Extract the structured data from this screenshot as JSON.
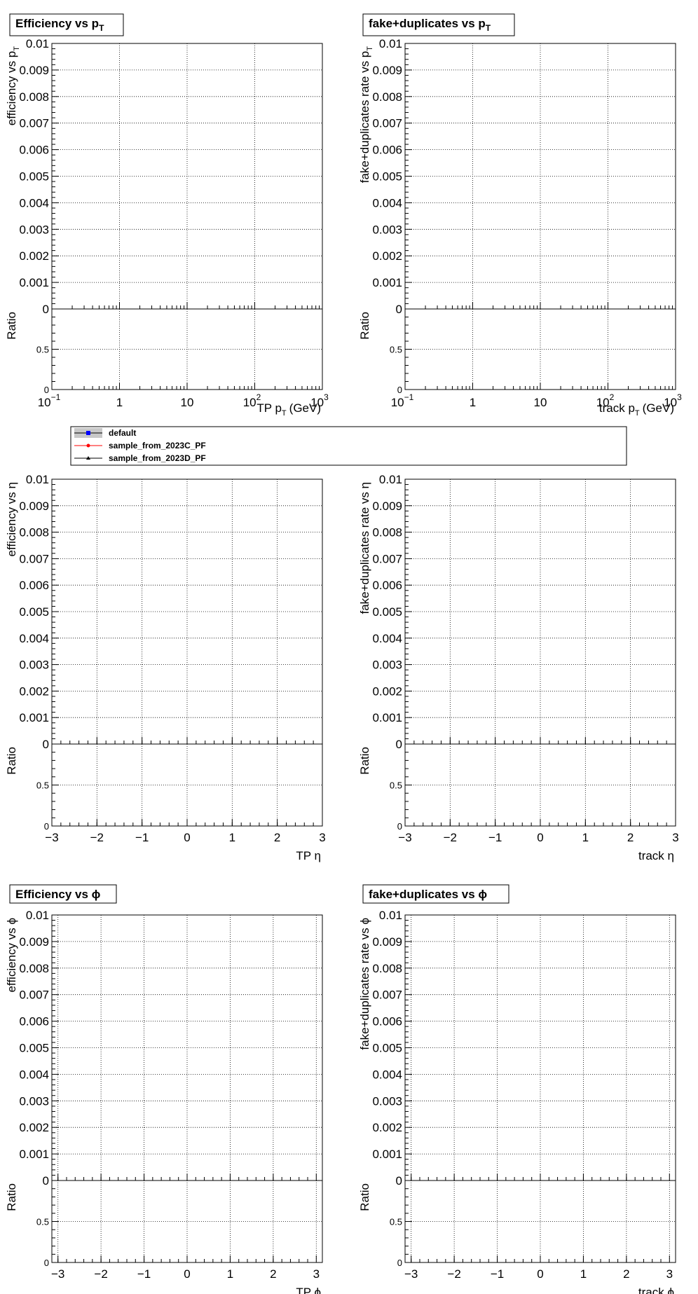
{
  "chart_data": [
    {
      "id": "eff_pt",
      "type": "line",
      "title": "Efficiency vs p",
      "title_sub": "T",
      "ylabel": "efficiency vs p",
      "ylabel_sub": "T",
      "xlabel": "TP p",
      "xlabel_sub": "T",
      "xlabel_unit": "(GeV)",
      "ratio_label": "Ratio",
      "x_scale": "log",
      "xlim": [
        0.1,
        1000
      ],
      "ylim": [
        0,
        0.01
      ],
      "ratio_ylim": [
        0,
        1.0
      ],
      "grid": true,
      "y_ticks": [
        "0",
        "0.001",
        "0.002",
        "0.003",
        "0.004",
        "0.005",
        "0.006",
        "0.007",
        "0.008",
        "0.009",
        "0.01"
      ],
      "ratio_ticks": [
        "0",
        "0.5"
      ],
      "series": []
    },
    {
      "id": "fake_pt",
      "type": "line",
      "title": "fake+duplicates vs p",
      "title_sub": "T",
      "ylabel": "fake+duplicates rate vs p",
      "ylabel_sub": "T",
      "xlabel": "track p",
      "xlabel_sub": "T",
      "xlabel_unit": "(GeV)",
      "ratio_label": "Ratio",
      "x_scale": "log",
      "xlim": [
        0.1,
        1000
      ],
      "ylim": [
        0,
        0.01
      ],
      "ratio_ylim": [
        0,
        1.0
      ],
      "grid": true,
      "y_ticks": [
        "0",
        "0.001",
        "0.002",
        "0.003",
        "0.004",
        "0.005",
        "0.006",
        "0.007",
        "0.008",
        "0.009",
        "0.01"
      ],
      "ratio_ticks": [
        "0",
        "0.5"
      ],
      "series": []
    },
    {
      "id": "eff_eta",
      "type": "line",
      "title": "",
      "title_sub": "",
      "ylabel": "efficiency vs η",
      "ylabel_sub": "",
      "xlabel": "TP η",
      "xlabel_sub": "",
      "xlabel_unit": "",
      "ratio_label": "Ratio",
      "x_scale": "linear",
      "xlim": [
        -3,
        3
      ],
      "ylim": [
        0,
        0.01
      ],
      "ratio_ylim": [
        0,
        1.0
      ],
      "grid": true,
      "x_ticks": [
        "−3",
        "−2",
        "−1",
        "0",
        "1",
        "2",
        "3"
      ],
      "y_ticks": [
        "0",
        "0.001",
        "0.002",
        "0.003",
        "0.004",
        "0.005",
        "0.006",
        "0.007",
        "0.008",
        "0.009",
        "0.01"
      ],
      "ratio_ticks": [
        "0",
        "0.5"
      ],
      "series": []
    },
    {
      "id": "fake_eta",
      "type": "line",
      "title": "",
      "title_sub": "",
      "ylabel": "fake+duplicates rate vs η",
      "ylabel_sub": "",
      "xlabel": "track η",
      "xlabel_sub": "",
      "xlabel_unit": "",
      "ratio_label": "Ratio",
      "x_scale": "linear",
      "xlim": [
        -3,
        3
      ],
      "ylim": [
        0,
        0.01
      ],
      "ratio_ylim": [
        0,
        1.0
      ],
      "grid": true,
      "x_ticks": [
        "−3",
        "−2",
        "−1",
        "0",
        "1",
        "2",
        "3"
      ],
      "y_ticks": [
        "0",
        "0.001",
        "0.002",
        "0.003",
        "0.004",
        "0.005",
        "0.006",
        "0.007",
        "0.008",
        "0.009",
        "0.01"
      ],
      "ratio_ticks": [
        "0",
        "0.5"
      ],
      "series": []
    },
    {
      "id": "eff_phi",
      "type": "line",
      "title": "Efficiency vs ϕ",
      "title_sub": "",
      "ylabel": "efficiency vs ϕ",
      "ylabel_sub": "",
      "xlabel": "TP ϕ",
      "xlabel_sub": "",
      "xlabel_unit": "",
      "ratio_label": "Ratio",
      "x_scale": "linear",
      "xlim": [
        -3.14159,
        3.14159
      ],
      "ylim": [
        0,
        0.01
      ],
      "ratio_ylim": [
        0,
        1.0
      ],
      "grid": true,
      "x_ticks": [
        "−3",
        "−2",
        "−1",
        "0",
        "1",
        "2",
        "3"
      ],
      "y_ticks": [
        "0",
        "0.001",
        "0.002",
        "0.003",
        "0.004",
        "0.005",
        "0.006",
        "0.007",
        "0.008",
        "0.009",
        "0.01"
      ],
      "ratio_ticks": [
        "0",
        "0.5"
      ],
      "series": []
    },
    {
      "id": "fake_phi",
      "type": "line",
      "title": "fake+duplicates vs ϕ",
      "title_sub": "",
      "ylabel": "fake+duplicates rate vs ϕ",
      "ylabel_sub": "",
      "xlabel": "track ϕ",
      "xlabel_sub": "",
      "xlabel_unit": "",
      "ratio_label": "Ratio",
      "x_scale": "linear",
      "xlim": [
        -3.14159,
        3.14159
      ],
      "ylim": [
        0,
        0.01
      ],
      "ratio_ylim": [
        0,
        1.0
      ],
      "grid": true,
      "x_ticks": [
        "−3",
        "−2",
        "−1",
        "0",
        "1",
        "2",
        "3"
      ],
      "y_ticks": [
        "0",
        "0.001",
        "0.002",
        "0.003",
        "0.004",
        "0.005",
        "0.006",
        "0.007",
        "0.008",
        "0.009",
        "0.01"
      ],
      "ratio_ticks": [
        "0",
        "0.5"
      ],
      "series": []
    }
  ],
  "legend": {
    "placement": "between-rows",
    "entries": [
      {
        "label": "default",
        "color": "#0000ff",
        "marker": "square"
      },
      {
        "label": "sample_from_2023C_PF",
        "color": "#ff0000",
        "marker": "circle"
      },
      {
        "label": "sample_from_2023D_PF",
        "color": "#000000",
        "marker": "triangle"
      }
    ]
  }
}
